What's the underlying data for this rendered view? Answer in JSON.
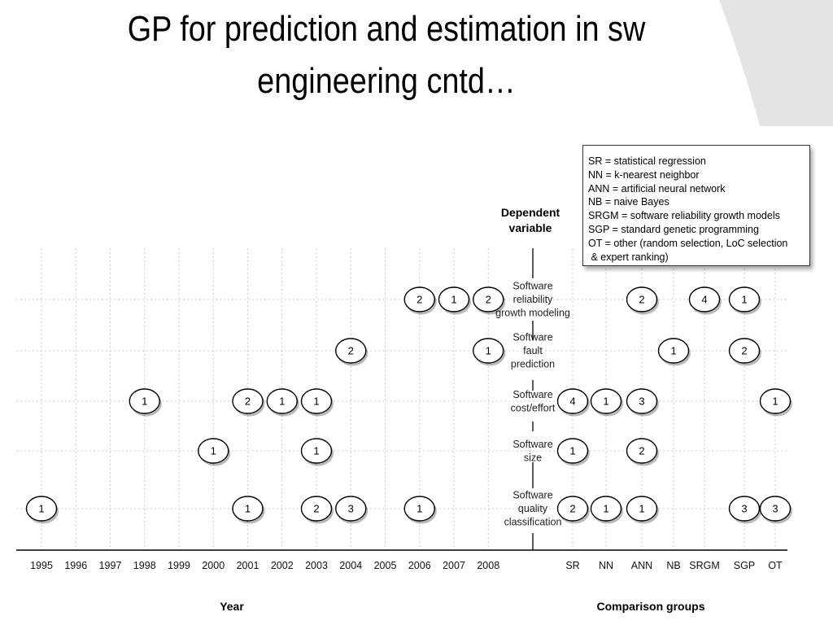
{
  "slide": {
    "title_line1": "GP for prediction and estimation in sw",
    "title_line2": "engineering cntd…"
  },
  "chart_data": {
    "type": "bubble-grid",
    "dependent_variable_label": [
      "Dependent",
      "variable"
    ],
    "xlabel_left": "Year",
    "xlabel_right": "Comparison groups",
    "years": [
      "1995",
      "1996",
      "1997",
      "1998",
      "1999",
      "2000",
      "2001",
      "2002",
      "2003",
      "2004",
      "2005",
      "2006",
      "2007",
      "2008"
    ],
    "groups": [
      "SR",
      "NN",
      "ANN",
      "NB",
      "SRGM",
      "SGP",
      "OT"
    ],
    "rows": [
      {
        "label": [
          "Software",
          "reliability",
          "growth modeling"
        ],
        "years": [
          {
            "x": "2006",
            "n": 2
          },
          {
            "x": "2007",
            "n": 1
          },
          {
            "x": "2008",
            "n": 2
          }
        ],
        "groups": [
          {
            "x": "ANN",
            "n": 2
          },
          {
            "x": "SRGM",
            "n": 4
          },
          {
            "x": "SGP",
            "n": 1
          }
        ]
      },
      {
        "label": [
          "Software",
          "fault",
          "prediction"
        ],
        "years": [
          {
            "x": "2004",
            "n": 2
          },
          {
            "x": "2008",
            "n": 1
          }
        ],
        "groups": [
          {
            "x": "NB",
            "n": 1
          },
          {
            "x": "SGP",
            "n": 2
          }
        ]
      },
      {
        "label": [
          "Software",
          "cost/effort"
        ],
        "years": [
          {
            "x": "1998",
            "n": 1
          },
          {
            "x": "2001",
            "n": 2
          },
          {
            "x": "2002",
            "n": 1
          },
          {
            "x": "2003",
            "n": 1
          }
        ],
        "groups": [
          {
            "x": "SR",
            "n": 4
          },
          {
            "x": "NN",
            "n": 1
          },
          {
            "x": "ANN",
            "n": 3
          },
          {
            "x": "OT",
            "n": 1
          }
        ]
      },
      {
        "label": [
          "Software",
          "size"
        ],
        "years": [
          {
            "x": "2000",
            "n": 1
          },
          {
            "x": "2003",
            "n": 1
          }
        ],
        "groups": [
          {
            "x": "SR",
            "n": 1
          },
          {
            "x": "ANN",
            "n": 2
          }
        ]
      },
      {
        "label": [
          "Software",
          "quality",
          "classification"
        ],
        "years": [
          {
            "x": "1995",
            "n": 1
          },
          {
            "x": "2001",
            "n": 1
          },
          {
            "x": "2003",
            "n": 2
          },
          {
            "x": "2004",
            "n": 3
          },
          {
            "x": "2006",
            "n": 1
          }
        ],
        "groups": [
          {
            "x": "SR",
            "n": 2
          },
          {
            "x": "NN",
            "n": 1
          },
          {
            "x": "ANN",
            "n": 1
          },
          {
            "x": "SGP",
            "n": 3
          },
          {
            "x": "OT",
            "n": 3
          }
        ]
      }
    ],
    "legend": [
      "SR = statistical regression",
      "NN = k-nearest neighbor",
      "ANN = artificial neural network",
      "NB = naive Bayes",
      "SRGM = software reliability growth models",
      "SGP = standard genetic programming",
      "OT = other (random selection, LoC selection",
      " & expert ranking)"
    ],
    "grid": true
  }
}
